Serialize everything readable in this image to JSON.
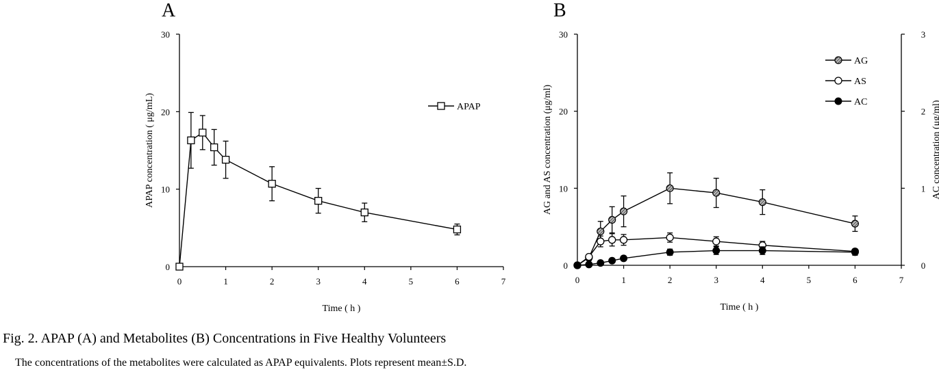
{
  "caption": {
    "title": "Fig.  2.    APAP (A) and Metabolites (B) Concentrations in Five Healthy Volunteers",
    "note": "The concentrations of the metabolites were calculated as APAP equivalents. Plots represent mean±S.D."
  },
  "chart_data": [
    {
      "type": "line",
      "panel": "A",
      "xlabel": "Time ( h )",
      "ylabel": "APAP concentration ( μg/mL)",
      "xlim": [
        0,
        7
      ],
      "ylim": [
        0,
        30
      ],
      "xticks": [
        0,
        1,
        2,
        3,
        4,
        5,
        6,
        7
      ],
      "yticks": [
        0,
        10,
        20,
        30
      ],
      "grid": false,
      "legend_position": "top-right",
      "series": [
        {
          "name": "APAP",
          "marker": "open-square",
          "x": [
            0,
            0.25,
            0.5,
            0.75,
            1,
            2,
            3,
            4,
            6
          ],
          "y": [
            0,
            16.3,
            17.3,
            15.4,
            13.8,
            10.7,
            8.5,
            7.0,
            4.8
          ],
          "sd": [
            0,
            3.6,
            2.2,
            2.3,
            2.4,
            2.2,
            1.6,
            1.2,
            0.7
          ]
        }
      ]
    },
    {
      "type": "line",
      "panel": "B",
      "xlabel": "Time ( h )",
      "ylabel": "AG and AS concentration (μg/ml)",
      "y2label": "AC concentration  (μg/ml)",
      "xlim": [
        0,
        7
      ],
      "ylim": [
        0,
        30
      ],
      "y2lim": [
        0,
        3
      ],
      "xticks": [
        0,
        1,
        2,
        3,
        4,
        5,
        6,
        7
      ],
      "yticks": [
        0,
        10,
        20,
        30
      ],
      "y2ticks": [
        0,
        1,
        2,
        3
      ],
      "grid": false,
      "legend_position": "top-right",
      "series": [
        {
          "name": "AG",
          "marker": "hatched-circle",
          "axis": "left",
          "x": [
            0,
            0.25,
            0.5,
            0.75,
            1,
            2,
            3,
            4,
            6
          ],
          "y": [
            0,
            1.0,
            4.4,
            5.9,
            7.0,
            10.0,
            9.4,
            8.2,
            5.4
          ],
          "sd": [
            0,
            0.4,
            1.3,
            1.7,
            2.0,
            2.0,
            1.9,
            1.6,
            1.0
          ]
        },
        {
          "name": "AS",
          "marker": "open-circle",
          "axis": "left",
          "x": [
            0,
            0.25,
            0.5,
            0.75,
            1,
            2,
            3,
            4,
            6
          ],
          "y": [
            0,
            1.1,
            3.1,
            3.3,
            3.3,
            3.6,
            3.1,
            2.6,
            1.8
          ],
          "sd": [
            0,
            0.2,
            0.7,
            0.8,
            0.7,
            0.6,
            0.6,
            0.5,
            0.3
          ]
        },
        {
          "name": "AC",
          "marker": "filled-circle",
          "axis": "right",
          "x": [
            0,
            0.25,
            0.5,
            0.75,
            1,
            2,
            3,
            4,
            6
          ],
          "y": [
            0,
            0.01,
            0.03,
            0.06,
            0.09,
            0.17,
            0.19,
            0.19,
            0.17
          ],
          "sd": [
            0,
            0.01,
            0.01,
            0.02,
            0.03,
            0.04,
            0.05,
            0.05,
            0.04
          ]
        }
      ]
    }
  ]
}
